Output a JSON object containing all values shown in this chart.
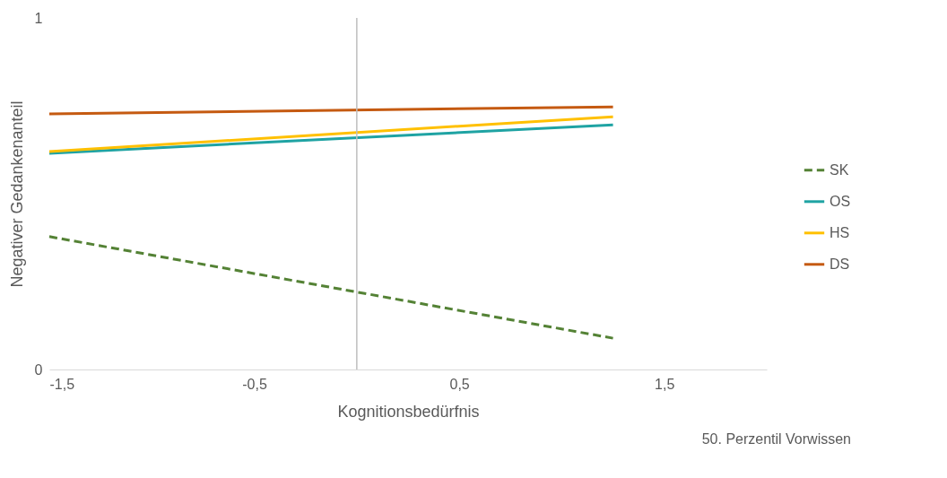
{
  "chart_data": {
    "type": "line",
    "xlabel": "Kognitionsbedürfnis",
    "ylabel": "Negativer Gedankenanteil",
    "annotations": [
      "50. Perzentil Vorwissen"
    ],
    "x": [
      -1.5,
      1.25
    ],
    "xlim": [
      -1.5,
      2
    ],
    "xticks": [
      {
        "value": -1.5,
        "label": "-1,5"
      },
      {
        "value": -0.5,
        "label": "-0,5"
      },
      {
        "value": 0.5,
        "label": "0,5"
      },
      {
        "value": 1.5,
        "label": "1,5"
      }
    ],
    "ylim": [
      0,
      1
    ],
    "yticks": [
      0,
      1
    ],
    "grid": false,
    "legend": "right",
    "marker": "none",
    "ref_lines": [
      {
        "axis": "x",
        "value": 0,
        "color": "#bfbfbf"
      }
    ],
    "series": [
      {
        "name": "SK",
        "color": "#548235",
        "line_style": "dashed",
        "values": [
          0.378,
          0.089
        ]
      },
      {
        "name": "OS",
        "color": "#1fa3a3",
        "line_style": "solid",
        "values": [
          0.615,
          0.696
        ]
      },
      {
        "name": "HS",
        "color": "#ffc000",
        "line_style": "solid",
        "values": [
          0.62,
          0.719
        ]
      },
      {
        "name": "DS",
        "color": "#c55a11",
        "line_style": "solid",
        "values": [
          0.727,
          0.747
        ]
      }
    ]
  }
}
